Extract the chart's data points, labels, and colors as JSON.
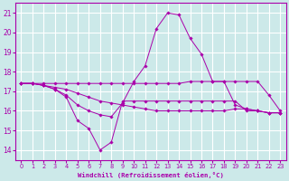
{
  "title": "",
  "xlabel": "Windchill (Refroidissement éolien,°C)",
  "xlim": [
    -0.5,
    23.5
  ],
  "ylim": [
    13.5,
    21.5
  ],
  "yticks": [
    14,
    15,
    16,
    17,
    18,
    19,
    20,
    21
  ],
  "xticks": [
    0,
    1,
    2,
    3,
    4,
    5,
    6,
    7,
    8,
    9,
    10,
    11,
    12,
    13,
    14,
    15,
    16,
    17,
    18,
    19,
    20,
    21,
    22,
    23
  ],
  "background_color": "#cce9e9",
  "grid_color": "#ffffff",
  "line_color": "#aa00aa",
  "line1_x": [
    0,
    1,
    2,
    3,
    4,
    5,
    6,
    7,
    8,
    9,
    10,
    11,
    12,
    13,
    14,
    15,
    16,
    17,
    18,
    19,
    20,
    21,
    22,
    23
  ],
  "line1_y": [
    17.4,
    17.4,
    17.3,
    17.1,
    16.7,
    15.5,
    15.1,
    14.0,
    14.4,
    16.5,
    16.5,
    16.5,
    16.5,
    16.5,
    16.5,
    16.5,
    16.5,
    16.5,
    16.5,
    16.5,
    16.0,
    16.0,
    15.9,
    15.9
  ],
  "line2_x": [
    0,
    1,
    2,
    3,
    4,
    5,
    6,
    7,
    8,
    9,
    10,
    11,
    12,
    13,
    14,
    15,
    16,
    17,
    18,
    19,
    20,
    21,
    22,
    23
  ],
  "line2_y": [
    17.4,
    17.4,
    17.3,
    17.1,
    16.8,
    16.3,
    16.0,
    15.8,
    15.7,
    16.4,
    17.5,
    18.3,
    20.2,
    21.0,
    20.9,
    19.7,
    18.9,
    17.5,
    17.5,
    16.3,
    16.1,
    16.0,
    15.9,
    15.9
  ],
  "line3_x": [
    0,
    1,
    2,
    3,
    4,
    5,
    6,
    7,
    8,
    9,
    10,
    11,
    12,
    13,
    14,
    15,
    16,
    17,
    18,
    19,
    20,
    21,
    22,
    23
  ],
  "line3_y": [
    17.4,
    17.4,
    17.4,
    17.4,
    17.4,
    17.4,
    17.4,
    17.4,
    17.4,
    17.4,
    17.4,
    17.4,
    17.4,
    17.4,
    17.4,
    17.5,
    17.5,
    17.5,
    17.5,
    17.5,
    17.5,
    17.5,
    16.8,
    16.0
  ],
  "line4_x": [
    0,
    1,
    2,
    3,
    4,
    5,
    6,
    7,
    8,
    9,
    10,
    11,
    12,
    13,
    14,
    15,
    16,
    17,
    18,
    19,
    20,
    21,
    22,
    23
  ],
  "line4_y": [
    17.4,
    17.4,
    17.3,
    17.2,
    17.1,
    16.9,
    16.7,
    16.5,
    16.4,
    16.3,
    16.2,
    16.1,
    16.0,
    16.0,
    16.0,
    16.0,
    16.0,
    16.0,
    16.0,
    16.1,
    16.1,
    16.0,
    15.9,
    15.9
  ]
}
